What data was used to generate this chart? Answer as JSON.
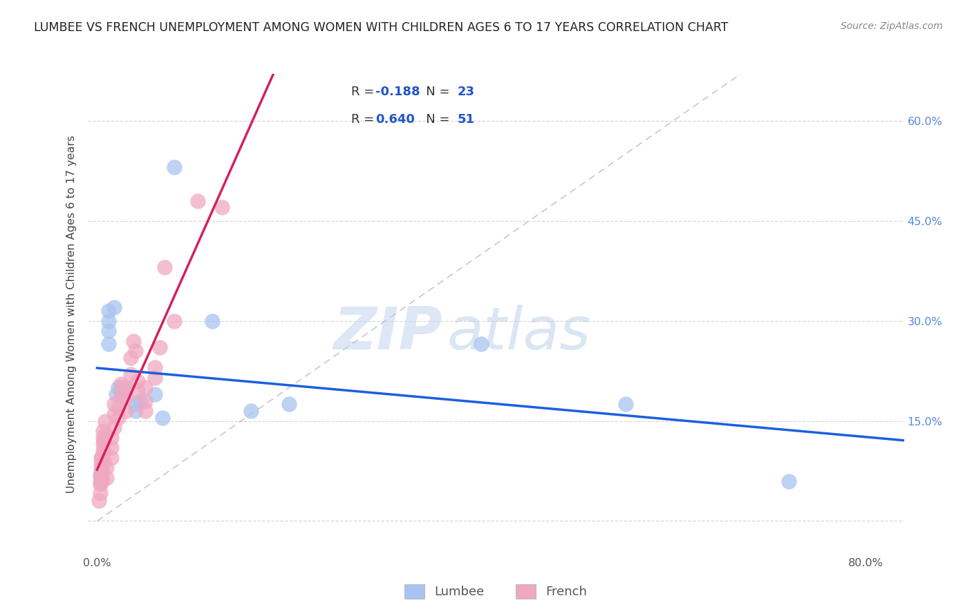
{
  "title": "LUMBEE VS FRENCH UNEMPLOYMENT AMONG WOMEN WITH CHILDREN AGES 6 TO 17 YEARS CORRELATION CHART",
  "source": "Source: ZipAtlas.com",
  "ylabel": "Unemployment Among Women with Children Ages 6 to 17 years",
  "xlabel_lumbee": "Lumbee",
  "xlabel_french": "French",
  "xlim": [
    -0.01,
    0.84
  ],
  "ylim": [
    -0.05,
    0.67
  ],
  "lumbee_R": "-0.188",
  "lumbee_N": "23",
  "french_R": "0.640",
  "french_N": "51",
  "lumbee_color": "#a8c4f0",
  "french_color": "#f0a8c0",
  "lumbee_line_color": "#1a5fe0",
  "french_line_color": "#d42060",
  "diagonal_line_color": "#c8c8c8",
  "lumbee_points": [
    [
      0.003,
      0.07
    ],
    [
      0.003,
      0.057
    ],
    [
      0.012,
      0.315
    ],
    [
      0.012,
      0.3
    ],
    [
      0.012,
      0.285
    ],
    [
      0.012,
      0.265
    ],
    [
      0.018,
      0.32
    ],
    [
      0.02,
      0.19
    ],
    [
      0.022,
      0.2
    ],
    [
      0.025,
      0.195
    ],
    [
      0.028,
      0.2
    ],
    [
      0.04,
      0.165
    ],
    [
      0.04,
      0.175
    ],
    [
      0.045,
      0.18
    ],
    [
      0.06,
      0.19
    ],
    [
      0.068,
      0.155
    ],
    [
      0.08,
      0.53
    ],
    [
      0.12,
      0.3
    ],
    [
      0.16,
      0.165
    ],
    [
      0.2,
      0.175
    ],
    [
      0.4,
      0.265
    ],
    [
      0.55,
      0.175
    ],
    [
      0.72,
      0.06
    ]
  ],
  "french_points": [
    [
      0.002,
      0.03
    ],
    [
      0.003,
      0.042
    ],
    [
      0.003,
      0.055
    ],
    [
      0.003,
      0.065
    ],
    [
      0.004,
      0.075
    ],
    [
      0.004,
      0.085
    ],
    [
      0.004,
      0.095
    ],
    [
      0.005,
      0.06
    ],
    [
      0.005,
      0.07
    ],
    [
      0.005,
      0.08
    ],
    [
      0.005,
      0.095
    ],
    [
      0.006,
      0.105
    ],
    [
      0.006,
      0.115
    ],
    [
      0.006,
      0.125
    ],
    [
      0.006,
      0.135
    ],
    [
      0.007,
      0.09
    ],
    [
      0.007,
      0.105
    ],
    [
      0.007,
      0.12
    ],
    [
      0.008,
      0.13
    ],
    [
      0.008,
      0.15
    ],
    [
      0.01,
      0.065
    ],
    [
      0.01,
      0.08
    ],
    [
      0.015,
      0.095
    ],
    [
      0.015,
      0.11
    ],
    [
      0.015,
      0.125
    ],
    [
      0.018,
      0.14
    ],
    [
      0.018,
      0.16
    ],
    [
      0.018,
      0.175
    ],
    [
      0.022,
      0.155
    ],
    [
      0.022,
      0.17
    ],
    [
      0.025,
      0.19
    ],
    [
      0.025,
      0.205
    ],
    [
      0.03,
      0.165
    ],
    [
      0.03,
      0.185
    ],
    [
      0.03,
      0.2
    ],
    [
      0.035,
      0.22
    ],
    [
      0.035,
      0.245
    ],
    [
      0.038,
      0.27
    ],
    [
      0.04,
      0.255
    ],
    [
      0.042,
      0.195
    ],
    [
      0.042,
      0.21
    ],
    [
      0.05,
      0.165
    ],
    [
      0.05,
      0.18
    ],
    [
      0.05,
      0.2
    ],
    [
      0.06,
      0.215
    ],
    [
      0.06,
      0.23
    ],
    [
      0.065,
      0.26
    ],
    [
      0.07,
      0.38
    ],
    [
      0.08,
      0.3
    ],
    [
      0.105,
      0.48
    ],
    [
      0.13,
      0.47
    ]
  ],
  "watermark_zip": "ZIP",
  "watermark_atlas": "atlas",
  "background_color": "#ffffff",
  "grid_color": "#d8d8d8"
}
